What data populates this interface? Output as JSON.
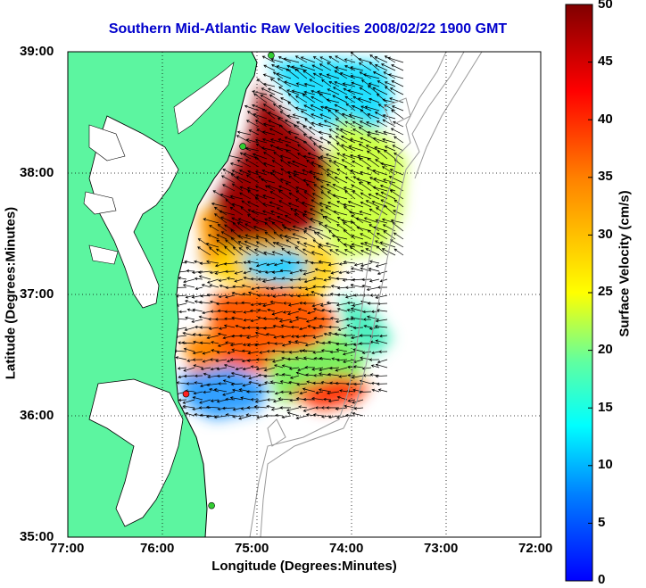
{
  "title": "Southern Mid-Atlantic Raw Velocities 2008/02/22 1900 GMT",
  "xlabel": "Longitude (Degrees:Minutes)",
  "ylabel": "Latitude (Degrees:Minutes)",
  "colorbar": {
    "label": "Surface Velocity (cm/s)",
    "ticks": [
      "0",
      "5",
      "10",
      "15",
      "20",
      "25",
      "30",
      "35",
      "40",
      "45",
      "50"
    ],
    "range": [
      0,
      50
    ],
    "colormap": [
      "#0000ff",
      "#0080ff",
      "#00ffff",
      "#80ff80",
      "#ffff00",
      "#ff8000",
      "#ff0000",
      "#800000"
    ]
  },
  "axes": {
    "lon_ticks": [
      "77:00",
      "76:00",
      "75:00",
      "74:00",
      "73:00",
      "72:00"
    ],
    "lat_ticks": [
      "35:00",
      "36:00",
      "37:00",
      "38:00",
      "39:00"
    ],
    "lon_range": [
      -77,
      -72
    ],
    "lat_range": [
      35,
      39
    ],
    "grid": "dotted"
  },
  "colors": {
    "land": "#5cf5a0",
    "water": "#ffffff",
    "title": "#0000cc",
    "bathymetry": "#999999",
    "vector": "#000000"
  },
  "stations": [
    {
      "color": "#33cc33",
      "lon": -74.85,
      "lat": 38.97
    },
    {
      "color": "#33cc33",
      "lon": -75.15,
      "lat": 38.22
    },
    {
      "color": "#ff2020",
      "lon": -75.75,
      "lat": 36.18
    },
    {
      "color": "#33cc33",
      "lon": -75.48,
      "lat": 35.26
    }
  ],
  "velocity_field": {
    "regions": [
      {
        "speed": 47,
        "lon": -74.9,
        "lat": 38.3
      },
      {
        "speed": 14,
        "lon": -74.25,
        "lat": 38.55
      },
      {
        "speed": 23,
        "lon": -73.9,
        "lat": 37.8
      },
      {
        "speed": 16,
        "lon": -74.7,
        "lat": 37.3
      },
      {
        "speed": 34,
        "lon": -74.8,
        "lat": 36.8
      },
      {
        "speed": 12,
        "lon": -75.3,
        "lat": 36.35
      },
      {
        "speed": 22,
        "lon": -74.6,
        "lat": 36.35
      },
      {
        "speed": 38,
        "lon": -74.2,
        "lat": 36.2
      }
    ]
  }
}
